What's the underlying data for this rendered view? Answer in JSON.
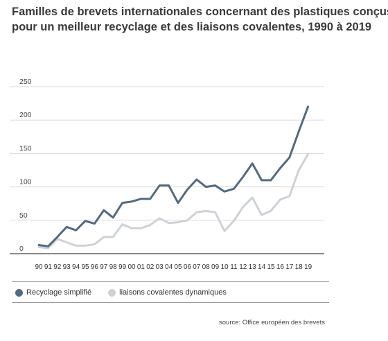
{
  "title": {
    "line1": "Familles de brevets internationales concernant des plastiques conçus",
    "line2": "pour un meilleur recyclage et des liaisons covalentes, 1990 à 2019"
  },
  "legend": {
    "items": [
      {
        "label": "Recyclage simplifié",
        "color": "#526a80"
      },
      {
        "label": "liaisons covalentes dynamiques",
        "color": "#cdd2d7"
      }
    ]
  },
  "source": "source: Office européen des brevets",
  "chart_data": {
    "type": "line",
    "categories": [
      "90",
      "91",
      "92",
      "93",
      "94",
      "95",
      "96",
      "97",
      "98",
      "99",
      "00",
      "01",
      "02",
      "03",
      "04",
      "05",
      "06",
      "07",
      "08",
      "09",
      "10",
      "11",
      "12",
      "13",
      "14",
      "15",
      "16",
      "17",
      "18",
      "19"
    ],
    "ylim": [
      0,
      250
    ],
    "yticks": [
      0,
      50,
      100,
      150,
      200,
      250
    ],
    "grid": true,
    "legend_position": "bottom",
    "series": [
      {
        "name": "Recyclage simplifié",
        "color": "#526a80",
        "values": [
          13,
          11,
          25,
          40,
          35,
          49,
          45,
          65,
          54,
          76,
          78,
          82,
          82,
          102,
          102,
          76,
          96,
          111,
          100,
          102,
          93,
          97,
          115,
          135,
          110,
          110,
          128,
          144,
          183,
          220
        ]
      },
      {
        "name": "liaisons covalentes dynamiques",
        "color": "#cdd2d7",
        "values": [
          10,
          8,
          22,
          17,
          12,
          12,
          14,
          25,
          25,
          44,
          38,
          38,
          43,
          53,
          46,
          47,
          50,
          62,
          64,
          62,
          34,
          49,
          70,
          84,
          58,
          64,
          81,
          86,
          125,
          149
        ]
      }
    ]
  }
}
